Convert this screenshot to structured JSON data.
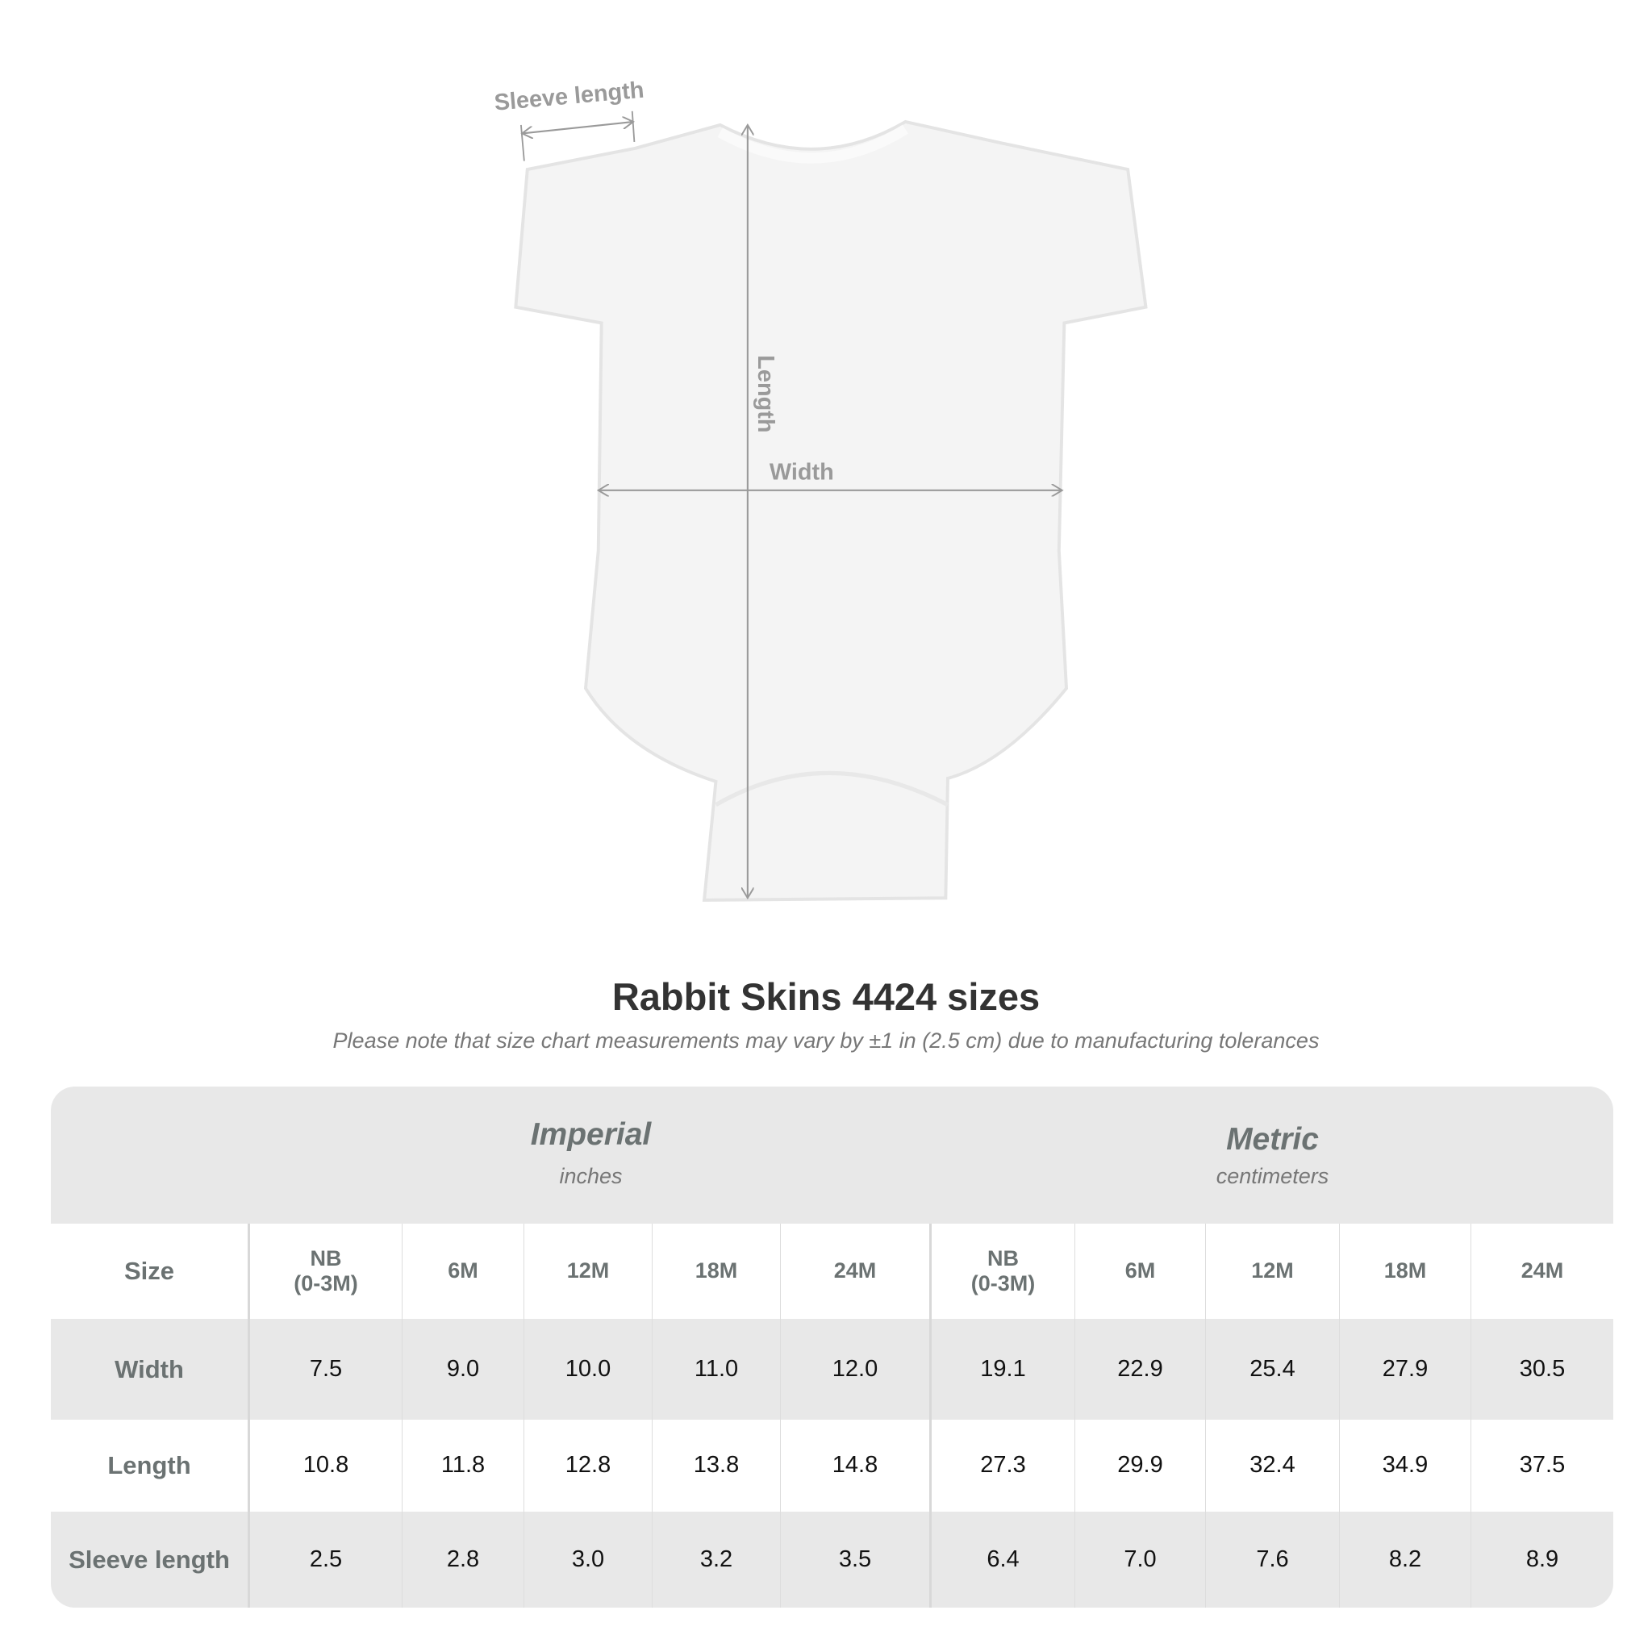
{
  "diagram": {
    "labels": {
      "sleeve": "Sleeve length",
      "length": "Length",
      "width": "Width"
    },
    "garment_color": "#f4f4f4",
    "arrow_color": "#9a9a9a"
  },
  "title": "Rabbit Skins 4424 sizes",
  "subtitle": "Please note that size chart measurements may vary by ±1 in (2.5 cm) due to manufacturing tolerances",
  "table": {
    "imperial": {
      "title": "Imperial",
      "unit": "inches"
    },
    "metric": {
      "title": "Metric",
      "unit": "centimeters"
    },
    "size_label": "Size",
    "sizes": [
      "NB\n(0-3M)",
      "6M",
      "12M",
      "18M",
      "24M"
    ],
    "rows": [
      {
        "label": "Width",
        "imperial": [
          "7.5",
          "9.0",
          "10.0",
          "11.0",
          "12.0"
        ],
        "metric": [
          "19.1",
          "22.9",
          "25.4",
          "27.9",
          "30.5"
        ]
      },
      {
        "label": "Length",
        "imperial": [
          "10.8",
          "11.8",
          "12.8",
          "13.8",
          "14.8"
        ],
        "metric": [
          "27.3",
          "29.9",
          "32.4",
          "34.9",
          "37.5"
        ]
      },
      {
        "label": "Sleeve length",
        "imperial": [
          "2.5",
          "2.8",
          "3.0",
          "3.2",
          "3.5"
        ],
        "metric": [
          "6.4",
          "7.0",
          "7.6",
          "8.2",
          "8.9"
        ]
      }
    ]
  }
}
